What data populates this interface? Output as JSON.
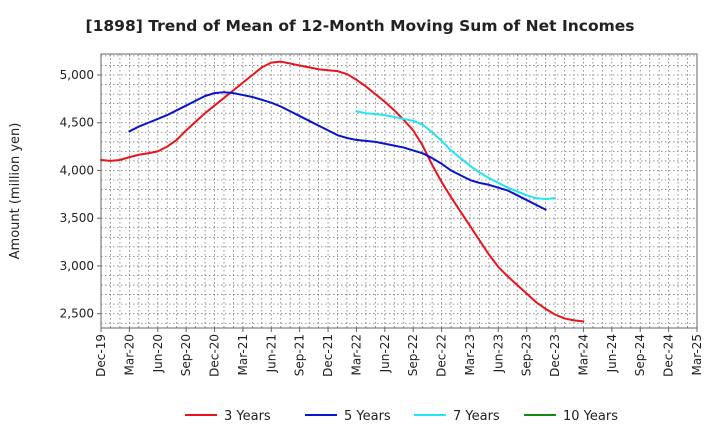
{
  "chart_data": {
    "type": "line",
    "title": "[1898]  Trend of Mean of 12-Month Moving Sum of Net Incomes",
    "xlabel": "",
    "ylabel": "Amount (million yen)",
    "ylim": [
      2350,
      5220
    ],
    "yticks": [
      2500,
      3000,
      3500,
      4000,
      4500,
      5000
    ],
    "ytick_labels": [
      "2,500",
      "3,000",
      "3,500",
      "4,000",
      "4,500",
      "5,000"
    ],
    "x_start": "Dec-19",
    "x_end": "Mar-25",
    "x_tick_labels": [
      "Dec-19",
      "Mar-20",
      "Jun-20",
      "Sep-20",
      "Dec-20",
      "Mar-21",
      "Jun-21",
      "Sep-21",
      "Dec-21",
      "Mar-22",
      "Jun-22",
      "Sep-22",
      "Dec-22",
      "Mar-23",
      "Jun-23",
      "Sep-23",
      "Dec-23",
      "Mar-24",
      "Jun-24",
      "Sep-24",
      "Dec-24",
      "Mar-25"
    ],
    "grid": true,
    "legend_position": "bottom",
    "series": [
      {
        "name": "3 Years",
        "color": "#e8141c",
        "start": "Dec-19",
        "values": [
          4110,
          4100,
          4110,
          4140,
          4165,
          4180,
          4200,
          4250,
          4320,
          4420,
          4510,
          4600,
          4680,
          4760,
          4840,
          4920,
          5000,
          5080,
          5130,
          5140,
          5120,
          5100,
          5080,
          5060,
          5050,
          5040,
          5010,
          4950,
          4880,
          4800,
          4720,
          4630,
          4530,
          4420,
          4260,
          4060,
          3880,
          3720,
          3570,
          3420,
          3270,
          3120,
          2990,
          2890,
          2800,
          2710,
          2620,
          2550,
          2490,
          2450,
          2430,
          2420
        ]
      },
      {
        "name": "5 Years",
        "color": "#0a14c8",
        "start": "Mar-20",
        "values": [
          4410,
          4460,
          4500,
          4540,
          4580,
          4630,
          4680,
          4730,
          4780,
          4810,
          4820,
          4810,
          4790,
          4770,
          4740,
          4710,
          4670,
          4620,
          4570,
          4520,
          4470,
          4420,
          4370,
          4340,
          4320,
          4310,
          4300,
          4280,
          4260,
          4240,
          4210,
          4180,
          4130,
          4070,
          4000,
          3950,
          3900,
          3870,
          3850,
          3820,
          3790,
          3740,
          3690,
          3640,
          3590
        ]
      },
      {
        "name": "7 Years",
        "color": "#22e6f0",
        "start": "Mar-22",
        "values": [
          4620,
          4600,
          4590,
          4580,
          4560,
          4540,
          4520,
          4480,
          4400,
          4310,
          4210,
          4130,
          4050,
          3980,
          3920,
          3870,
          3820,
          3780,
          3740,
          3710,
          3700,
          3710
        ]
      },
      {
        "name": "10 Years",
        "color": "#138a16",
        "start": "Dec-19",
        "values": []
      }
    ]
  }
}
